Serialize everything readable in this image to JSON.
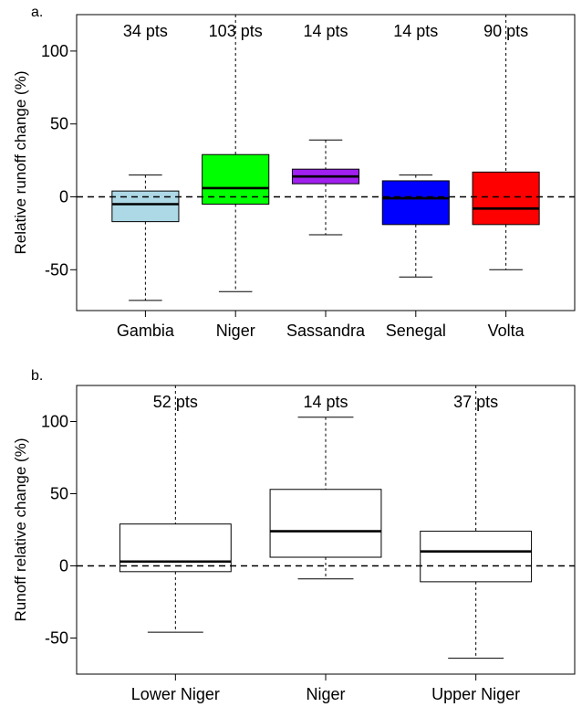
{
  "chart_data": [
    {
      "type": "box",
      "panel_label": "a.",
      "ylabel": "Relative runoff change (%)",
      "ylim": [
        -78,
        125
      ],
      "yticks": [
        -50,
        0,
        50,
        100
      ],
      "reference_line": 0,
      "categories": [
        "Gambia",
        "Niger",
        "Sassandra",
        "Senegal",
        "Volta"
      ],
      "annotations": [
        "34 pts",
        "103 pts",
        "14 pts",
        "14 pts",
        "90 pts"
      ],
      "colors": [
        "#add8e6",
        "#00ff00",
        "#a020f0",
        "#0000ff",
        "#ff0000"
      ],
      "boxes": [
        {
          "whisker_low": -71,
          "q1": -17,
          "median": -5,
          "q3": 4,
          "whisker_high": 15
        },
        {
          "whisker_low": -65,
          "q1": -5,
          "median": 6,
          "q3": 29,
          "whisker_high": 125
        },
        {
          "whisker_low": -26,
          "q1": 9,
          "median": 14,
          "q3": 19,
          "whisker_high": 39
        },
        {
          "whisker_low": -55,
          "q1": -19,
          "median": -1,
          "q3": 11,
          "whisker_high": 15
        },
        {
          "whisker_low": -50,
          "q1": -19,
          "median": -8,
          "q3": 17,
          "whisker_high": 125
        }
      ]
    },
    {
      "type": "box",
      "panel_label": "b.",
      "ylabel": "Runoff relative change (%)",
      "ylim": [
        -75,
        125
      ],
      "yticks": [
        -50,
        0,
        50,
        100
      ],
      "reference_line": 0,
      "categories": [
        "Lower Niger",
        "Niger",
        "Upper Niger"
      ],
      "annotations": [
        "52 pts",
        "14 pts",
        "37 pts"
      ],
      "colors": [
        "#ffffff",
        "#ffffff",
        "#ffffff"
      ],
      "boxes": [
        {
          "whisker_low": -46,
          "q1": -4,
          "median": 3,
          "q3": 29,
          "whisker_high": 125
        },
        {
          "whisker_low": -9,
          "q1": 6,
          "median": 24,
          "q3": 53,
          "whisker_high": 103
        },
        {
          "whisker_low": -64,
          "q1": -11,
          "median": 10,
          "q3": 24,
          "whisker_high": 125
        }
      ]
    }
  ]
}
